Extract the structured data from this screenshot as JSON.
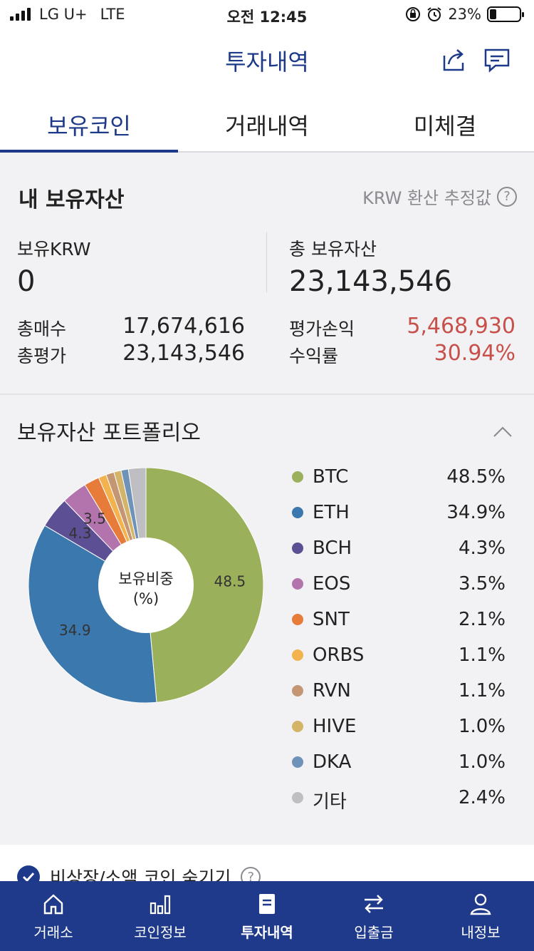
{
  "status": {
    "carrier": "LG U+",
    "network": "LTE",
    "time": "오전 12:45",
    "battery_pct": "23%",
    "battery_level": 0.23
  },
  "header": {
    "title": "투자내역",
    "share_icon": "share-icon",
    "message_icon": "message-icon"
  },
  "tabs": [
    {
      "label": "보유코인",
      "active": true
    },
    {
      "label": "거래내역",
      "active": false
    },
    {
      "label": "미체결",
      "active": false
    }
  ],
  "assets": {
    "title": "내 보유자산",
    "note": "KRW 환산 추정값",
    "krw_label": "보유KRW",
    "krw_value": "0",
    "total_label": "총 보유자산",
    "total_value": "23,143,546",
    "buy_label": "총매수",
    "buy_value": "17,674,616",
    "eval_label": "총평가",
    "eval_value": "23,143,546",
    "pnl_label": "평가손익",
    "pnl_value": "5,468,930",
    "ret_label": "수익률",
    "ret_value": "30.94%"
  },
  "portfolio": {
    "title": "보유자산 포트폴리오",
    "center_line1": "보유비중",
    "center_line2": "(%)"
  },
  "chart_data": {
    "type": "pie",
    "categories": [
      "BTC",
      "ETH",
      "BCH",
      "EOS",
      "SNT",
      "ORBS",
      "RVN",
      "HIVE",
      "DKA",
      "기타"
    ],
    "values": [
      48.5,
      34.9,
      4.3,
      3.5,
      2.1,
      1.1,
      1.1,
      1.0,
      1.0,
      2.4
    ],
    "value_labels": [
      "48.5%",
      "34.9%",
      "4.3%",
      "3.5%",
      "2.1%",
      "1.1%",
      "1.1%",
      "1.0%",
      "1.0%",
      "2.4%"
    ],
    "slice_labels": [
      "48.5",
      "34.9",
      "4.3",
      "3.5",
      "",
      "",
      "",
      "",
      "",
      ""
    ],
    "colors": [
      "#9bb05a",
      "#3a78ad",
      "#5c4f94",
      "#b373ad",
      "#e77b3a",
      "#f2b24e",
      "#c49673",
      "#d3b469",
      "#6f93b8",
      "#bebec3"
    ]
  },
  "hide_option": {
    "label": "비상장/소액 코인 숨기기"
  },
  "bottom_nav": [
    {
      "label": "거래소",
      "icon": "home-icon",
      "active": false
    },
    {
      "label": "코인정보",
      "icon": "bar-chart-icon",
      "active": false
    },
    {
      "label": "투자내역",
      "icon": "document-icon",
      "active": true
    },
    {
      "label": "입출금",
      "icon": "transfer-icon",
      "active": false
    },
    {
      "label": "내정보",
      "icon": "user-icon",
      "active": false
    }
  ]
}
